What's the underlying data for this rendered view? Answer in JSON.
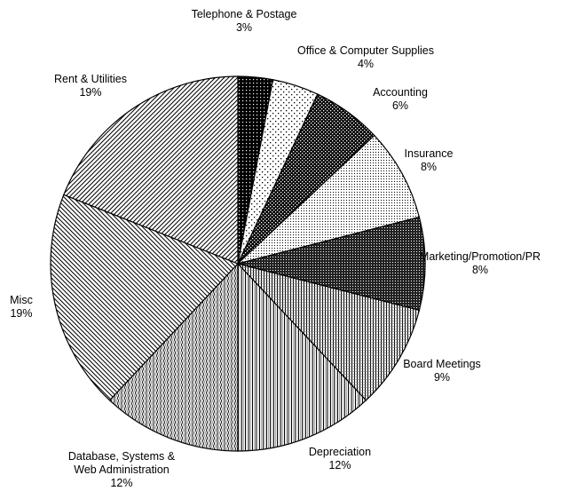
{
  "chart_data": {
    "type": "pie",
    "title": "",
    "start": "12 o'clock",
    "direction": "clockwise",
    "slices": [
      {
        "label": "Telephone & Postage",
        "pct_label": "3%",
        "value": 3,
        "pattern": "dense-dots"
      },
      {
        "label": "Office & Computer Supplies",
        "pct_label": "4%",
        "value": 4,
        "pattern": "sparse-dots"
      },
      {
        "label": "Accounting",
        "pct_label": "6%",
        "value": 6,
        "pattern": "checker"
      },
      {
        "label": "Insurance",
        "pct_label": "8%",
        "value": 8,
        "pattern": "fine-dots"
      },
      {
        "label": "Marketing/Promotion/PR",
        "pct_label": "8%",
        "value": 8,
        "pattern": "dark-stipple"
      },
      {
        "label": "Board Meetings",
        "pct_label": "9%",
        "value": 9,
        "pattern": "vertical-lines"
      },
      {
        "label": "Depreciation",
        "pct_label": "12%",
        "value": 12,
        "pattern": "vertical-grid"
      },
      {
        "label": "Database, Systems & Web Administration",
        "pct_label": "12%",
        "value": 12,
        "pattern": "wavy-vertical"
      },
      {
        "label": "Misc",
        "pct_label": "19%",
        "value": 19,
        "pattern": "diagonal-back"
      },
      {
        "label": "Rent & Utilities",
        "pct_label": "19%",
        "value": 19,
        "pattern": "diagonal-forward"
      }
    ],
    "colors": {
      "outline": "#000000",
      "background": "#ffffff"
    }
  }
}
